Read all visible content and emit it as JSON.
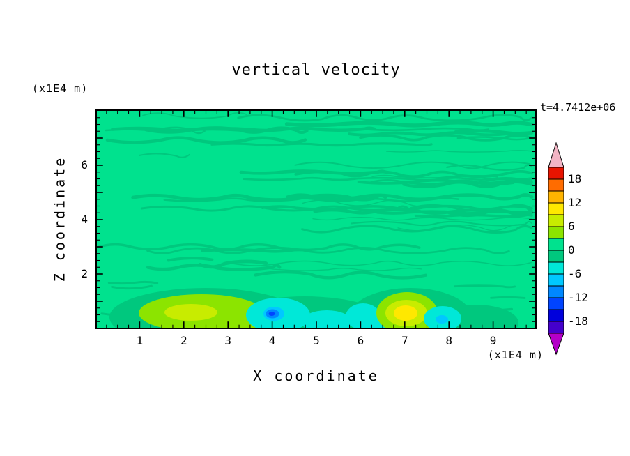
{
  "title": "vertical velocity",
  "time_label": "t=4.7412e+06",
  "axes": {
    "x_label": "X coordinate",
    "x_units": "(x1E4 m)",
    "z_label": "Z coordinate",
    "z_units": "(x1E4 m)",
    "x_ticks": [
      1,
      2,
      3,
      4,
      5,
      6,
      7,
      8,
      9
    ],
    "z_ticks": [
      2,
      4,
      6
    ]
  },
  "colorbar": {
    "tick_labels": [
      18,
      12,
      6,
      0,
      -6,
      -12,
      -18
    ],
    "levels": [
      -21,
      -18,
      -15,
      -12,
      -9,
      -6,
      -3,
      0,
      3,
      6,
      9,
      12,
      15,
      18,
      21
    ],
    "colors_bottom_to_top": [
      "#4400CC",
      "#0000DC",
      "#0044FF",
      "#0088FF",
      "#00C8FF",
      "#00E8D8",
      "#00C87E",
      "#00E28E",
      "#8CE400",
      "#C8EC00",
      "#FFE800",
      "#FFB400",
      "#FF6C00",
      "#E81400"
    ],
    "cap_top_color": "#F2B4C4",
    "cap_bottom_color": "#B400C8"
  },
  "chart_data": {
    "type": "heatmap",
    "subtype": "filled_contour",
    "title": "vertical velocity",
    "xlabel": "X coordinate (x1E4 m)",
    "ylabel": "Z coordinate (x1E4 m)",
    "time_annotation": "t=4.7412e+06",
    "x_range": [
      0,
      10
    ],
    "z_range": [
      0,
      8
    ],
    "contour_interval": 3,
    "levels": [
      -21,
      -18,
      -15,
      -12,
      -9,
      -6,
      -3,
      0,
      3,
      6,
      9,
      12,
      15,
      18,
      21
    ],
    "colorbar_tick_labels": [
      18,
      12,
      6,
      0,
      -6,
      -12,
      -18
    ],
    "legend_position": "right",
    "grid": false,
    "background_field": "vertical velocity mostly near zero (0 to 3 level, green) across the domain, with many thin wavy horizontal bands of the -3 to 0 level in the upper region (z > 2)",
    "features": [
      {
        "x": 1.6,
        "z": 0.75,
        "peak_value": 8,
        "description": "yellow-green updraft maximum near lower boundary"
      },
      {
        "x": 3.4,
        "z": 0.4,
        "peak_value": -2,
        "description": "broad weak negative (dark green) band along bottom"
      },
      {
        "x": 4.0,
        "z": 0.65,
        "peak_value": -13,
        "description": "blue downdraft minimum"
      },
      {
        "x": 4.9,
        "z": 0.45,
        "peak_value": -5,
        "description": "cyan negative patch"
      },
      {
        "x": 7.0,
        "z": 0.75,
        "peak_value": 11,
        "description": "yellow updraft maximum"
      },
      {
        "x": 7.85,
        "z": 0.5,
        "peak_value": -5,
        "description": "cyan negative patch"
      }
    ]
  }
}
